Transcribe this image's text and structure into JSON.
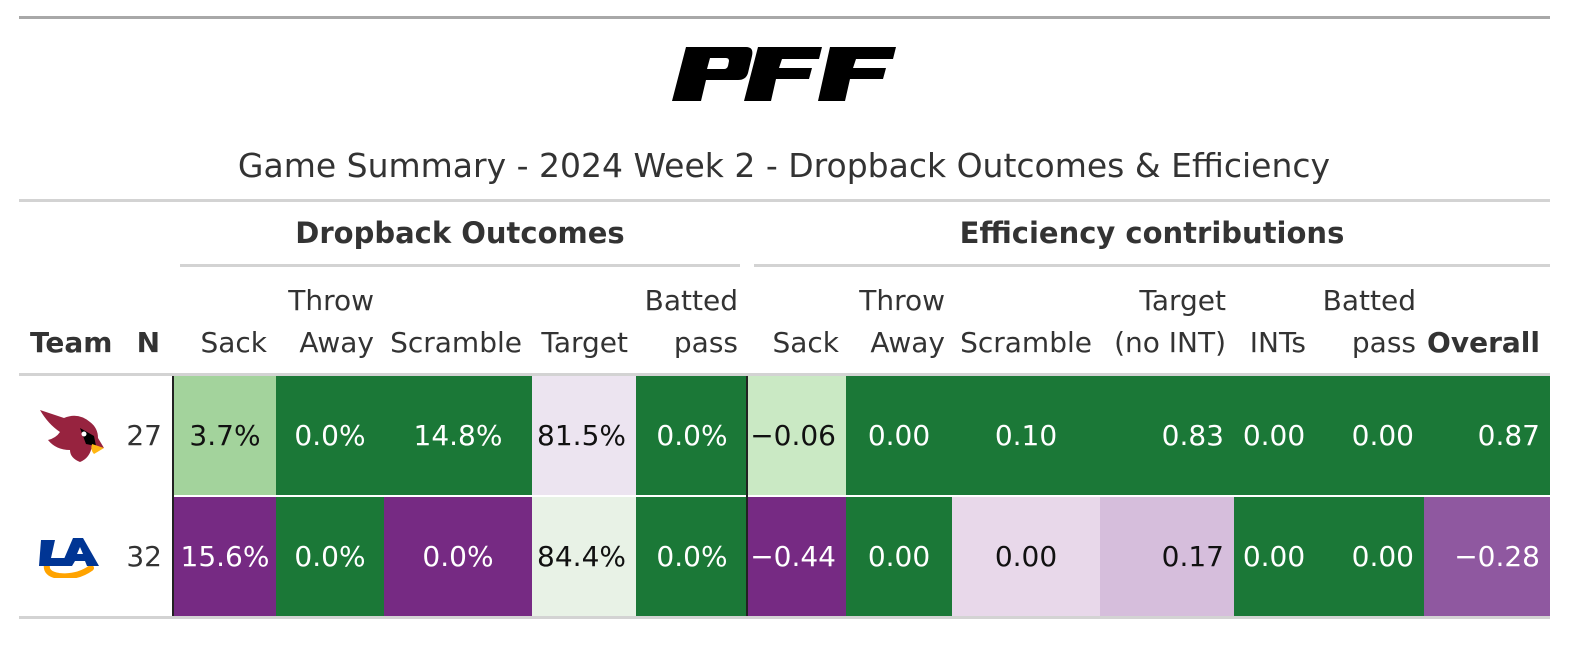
{
  "title": "Game Summary - 2024 Week 2 - Dropback Outcomes & Efficiency",
  "logo_text": "PFF",
  "spanners": {
    "outcomes": "Dropback Outcomes",
    "efficiency": "Efficiency contributions"
  },
  "headers": {
    "team": "Team",
    "n": "N",
    "out_sack": "Sack",
    "out_throw_l1": "Throw",
    "out_throw_l2": "Away",
    "out_scramble": "Scramble",
    "out_target": "Target",
    "out_batted_l1": "Batted",
    "out_batted_l2": "pass",
    "eff_sack": "Sack",
    "eff_throw_l1": "Throw",
    "eff_throw_l2": "Away",
    "eff_scramble": "Scramble",
    "eff_target_l1": "Target",
    "eff_target_l2": "(no INT)",
    "eff_ints": "INTs",
    "eff_batted_l1": "Batted",
    "eff_batted_l2": "pass",
    "eff_overall": "Overall"
  },
  "rows": [
    {
      "team_logo": "cardinals-logo",
      "n": "27",
      "cells": [
        {
          "text": "3.7%",
          "bg": "#a3d39c",
          "fg": "#111111"
        },
        {
          "text": "0.0%",
          "bg": "#1b7837",
          "fg": "#ffffff"
        },
        {
          "text": "14.8%",
          "bg": "#1b7837",
          "fg": "#ffffff"
        },
        {
          "text": "81.5%",
          "bg": "#ece4f0",
          "fg": "#111111"
        },
        {
          "text": "0.0%",
          "bg": "#1b7837",
          "fg": "#ffffff"
        },
        {
          "text": "−0.06",
          "bg": "#cae9c4",
          "fg": "#111111"
        },
        {
          "text": "0.00",
          "bg": "#1b7837",
          "fg": "#ffffff"
        },
        {
          "text": "0.10",
          "bg": "#1b7837",
          "fg": "#ffffff"
        },
        {
          "text": "0.83",
          "bg": "#1b7837",
          "fg": "#ffffff"
        },
        {
          "text": "0.00",
          "bg": "#1b7837",
          "fg": "#ffffff"
        },
        {
          "text": "0.00",
          "bg": "#1b7837",
          "fg": "#ffffff"
        },
        {
          "text": "0.87",
          "bg": "#1b7837",
          "fg": "#ffffff"
        }
      ]
    },
    {
      "team_logo": "rams-logo",
      "n": "32",
      "cells": [
        {
          "text": "15.6%",
          "bg": "#762a83",
          "fg": "#ffffff"
        },
        {
          "text": "0.0%",
          "bg": "#1b7837",
          "fg": "#ffffff"
        },
        {
          "text": "0.0%",
          "bg": "#762a83",
          "fg": "#ffffff"
        },
        {
          "text": "84.4%",
          "bg": "#e8f2e6",
          "fg": "#111111"
        },
        {
          "text": "0.0%",
          "bg": "#1b7837",
          "fg": "#ffffff"
        },
        {
          "text": "−0.44",
          "bg": "#762a83",
          "fg": "#ffffff"
        },
        {
          "text": "0.00",
          "bg": "#1b7837",
          "fg": "#ffffff"
        },
        {
          "text": "0.00",
          "bg": "#e8d8ea",
          "fg": "#111111"
        },
        {
          "text": "0.17",
          "bg": "#d6bedc",
          "fg": "#111111"
        },
        {
          "text": "0.00",
          "bg": "#1b7837",
          "fg": "#ffffff"
        },
        {
          "text": "0.00",
          "bg": "#1b7837",
          "fg": "#ffffff"
        },
        {
          "text": "−0.28",
          "bg": "#8f58a0",
          "fg": "#ffffff"
        }
      ]
    }
  ]
}
